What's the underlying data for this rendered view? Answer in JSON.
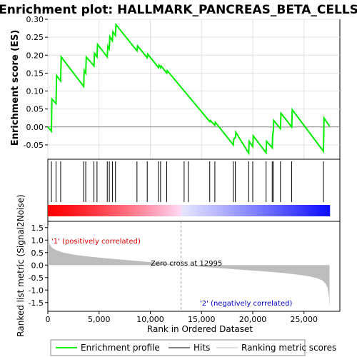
{
  "chart_data": {
    "type": "line",
    "title": "Enrichment plot: HALLMARK_PANCREAS_BETA_CELLS",
    "xlabel": "Rank in Ordered Dataset",
    "xlim": [
      0,
      28500
    ],
    "x_ticks": [
      0,
      5000,
      10000,
      15000,
      20000,
      25000
    ],
    "x_tick_labels": [
      "0",
      "5,000",
      "10,000",
      "15,000",
      "20,000",
      "25,000"
    ],
    "es_panel": {
      "ylabel": "Enrichment score (ES)",
      "ylim": [
        -0.09,
        0.3
      ],
      "y_ticks": [
        -0.05,
        0.0,
        0.05,
        0.1,
        0.15,
        0.2,
        0.25,
        0.3
      ],
      "y_tick_labels": [
        "-0.05",
        "0.00",
        "0.05",
        "0.10",
        "0.15",
        "0.20",
        "0.25",
        "0.30"
      ],
      "grid": true,
      "series": [
        {
          "name": "Enrichment profile",
          "color": "#00ee00",
          "x": [
            0,
            350,
            400,
            800,
            850,
            1250,
            1300,
            3500,
            3550,
            3700,
            3750,
            4500,
            4550,
            4800,
            4850,
            5800,
            5850,
            6000,
            6050,
            6300,
            6350,
            6600,
            6650,
            8700,
            8750,
            9700,
            9750,
            10800,
            10850,
            11000,
            11050,
            11600,
            11650,
            15800,
            15850,
            16300,
            16350,
            18100,
            18150,
            18300,
            18350,
            19600,
            19650,
            20000,
            20050,
            21300,
            21350,
            21900,
            21950,
            22000,
            22050,
            22700,
            22750,
            23800,
            23850,
            26900,
            26950,
            27500
          ],
          "y": [
            0.0,
            -0.012,
            0.078,
            0.065,
            0.143,
            0.128,
            0.195,
            0.113,
            0.158,
            0.15,
            0.195,
            0.17,
            0.205,
            0.195,
            0.23,
            0.195,
            0.225,
            0.218,
            0.252,
            0.24,
            0.265,
            0.255,
            0.285,
            0.212,
            0.226,
            0.193,
            0.203,
            0.165,
            0.172,
            0.165,
            0.17,
            0.15,
            0.157,
            0.015,
            0.018,
            0.005,
            0.013,
            -0.05,
            -0.033,
            -0.03,
            -0.015,
            -0.073,
            -0.04,
            -0.055,
            -0.025,
            -0.072,
            -0.04,
            -0.058,
            -0.02,
            -0.015,
            0.018,
            -0.005,
            0.038,
            0.0,
            0.048,
            -0.068,
            0.025,
            0.002
          ]
        }
      ]
    },
    "hits": [
      350,
      800,
      1250,
      3500,
      3700,
      4500,
      4800,
      5800,
      6000,
      6300,
      6600,
      8700,
      9700,
      10800,
      11000,
      11600,
      13300,
      13700,
      15800,
      16300,
      18100,
      18300,
      19600,
      20000,
      21300,
      21900,
      22000,
      22700,
      23800,
      26900
    ],
    "ranking_panel": {
      "ylabel": "Ranked list metric (Signal2Noise)",
      "ylim": [
        -1.85,
        1.75
      ],
      "y_ticks": [
        -1.5,
        -1.0,
        -0.5,
        0.0,
        0.5,
        1.0,
        1.5
      ],
      "y_tick_labels": [
        "-1.5",
        "-1.0",
        "-0.5",
        "0.0",
        "0.5",
        "1.0",
        "1.5"
      ],
      "zero_cross_rank": 12995,
      "profile": {
        "x": [
          0,
          150,
          400,
          800,
          1500,
          2500,
          4000,
          6000,
          8000,
          10000,
          12995,
          15000,
          18000,
          21000,
          23000,
          24500,
          25500,
          26300,
          26800,
          27100,
          27300,
          27450,
          27500
        ],
        "y": [
          1.62,
          0.85,
          0.7,
          0.6,
          0.5,
          0.42,
          0.34,
          0.26,
          0.19,
          0.12,
          0.0,
          -0.07,
          -0.16,
          -0.25,
          -0.32,
          -0.39,
          -0.45,
          -0.53,
          -0.62,
          -0.74,
          -0.9,
          -1.3,
          -1.72
        ]
      }
    },
    "annotations": {
      "positive": "'1' (positively correlated)",
      "negative": "'2' (negatively correlated)",
      "zero_cross": "Zero cross at 12995"
    },
    "legend": {
      "position": "bottom",
      "entries": [
        {
          "label": "Enrichment profile",
          "color": "#00ee00"
        },
        {
          "label": "Hits",
          "color": "#000000"
        },
        {
          "label": "Ranking metric scores",
          "color": "#bdbdbd"
        }
      ]
    },
    "colors": {
      "annotation_positive": "#dd0000",
      "annotation_negative": "#0000cc",
      "ranking_fill": "#bdbdbd"
    }
  }
}
